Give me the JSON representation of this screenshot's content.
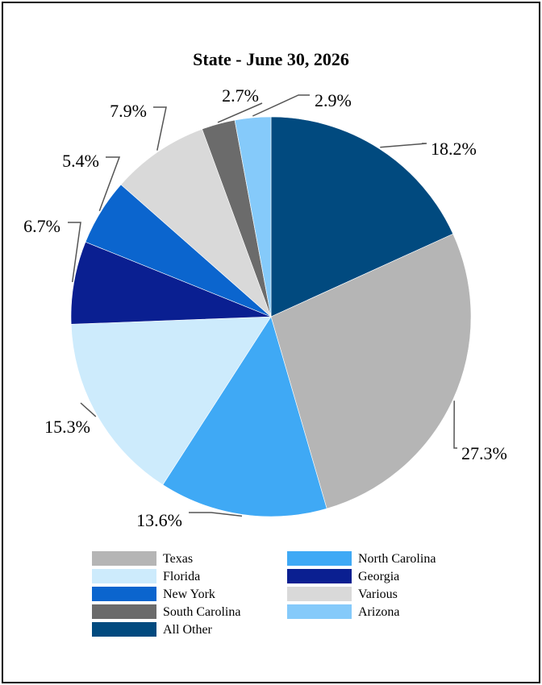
{
  "chart_data": {
    "type": "pie",
    "title": "State - June 30, 2026",
    "start_angle_deg": 0,
    "direction": "clockwise",
    "slices": [
      {
        "name": "All Other",
        "value": 18.2,
        "label": "18.2%",
        "color": "#014A7F"
      },
      {
        "name": "Texas",
        "value": 27.3,
        "label": "27.3%",
        "color": "#B5B5B5"
      },
      {
        "name": "North Carolina",
        "value": 13.6,
        "label": "13.6%",
        "color": "#3FA9F5"
      },
      {
        "name": "Florida",
        "value": 15.3,
        "label": "15.3%",
        "color": "#CDEBFC"
      },
      {
        "name": "Georgia",
        "value": 6.7,
        "label": "6.7%",
        "color": "#0A1F91"
      },
      {
        "name": "New York",
        "value": 5.4,
        "label": "5.4%",
        "color": "#0B65CE"
      },
      {
        "name": "Various",
        "value": 7.9,
        "label": "7.9%",
        "color": "#D9D9D9"
      },
      {
        "name": "South Carolina",
        "value": 2.7,
        "label": "2.7%",
        "color": "#6B6B6B"
      },
      {
        "name": "Arizona",
        "value": 2.9,
        "label": "2.9%",
        "color": "#85CAFA"
      }
    ],
    "legend": {
      "placement": "bottom",
      "entries": [
        "Texas",
        "North Carolina",
        "Florida",
        "Georgia",
        "New York",
        "Various",
        "South Carolina",
        "Arizona",
        "All Other"
      ]
    }
  }
}
